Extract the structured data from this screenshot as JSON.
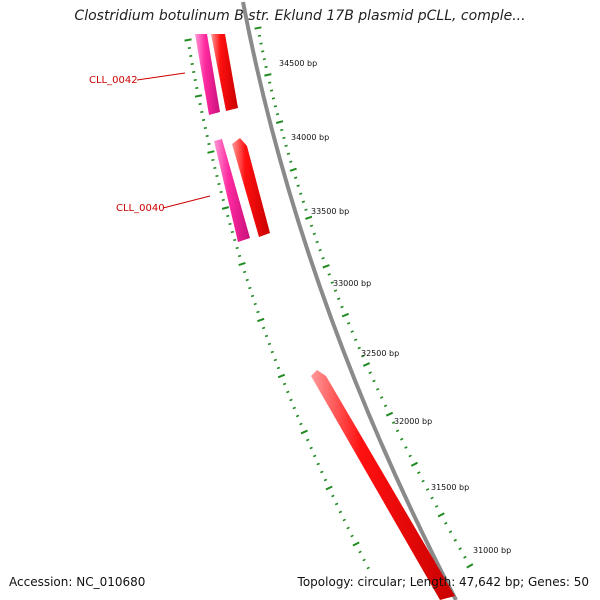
{
  "title": "Clostridium botulinum B str. Eklund 17B plasmid pCLL, comple...",
  "accession": "Accession: NC_010680",
  "summary": "Topology: circular; Length: 47,642 bp; Genes: 50",
  "colors": {
    "backbone": "#8a8a8a",
    "forward_gene": "#ff0000",
    "reverse_gene": "#ff2aa0",
    "ticks": "#228b22",
    "label": "#cc0000"
  },
  "tick_labels": [
    "34500 bp",
    "34000 bp",
    "33500 bp",
    "33000 bp",
    "32500 bp",
    "32000 bp",
    "31500 bp",
    "31000 bp"
  ],
  "gene_labels": [
    "CLL_0042",
    "CLL_0040"
  ]
}
